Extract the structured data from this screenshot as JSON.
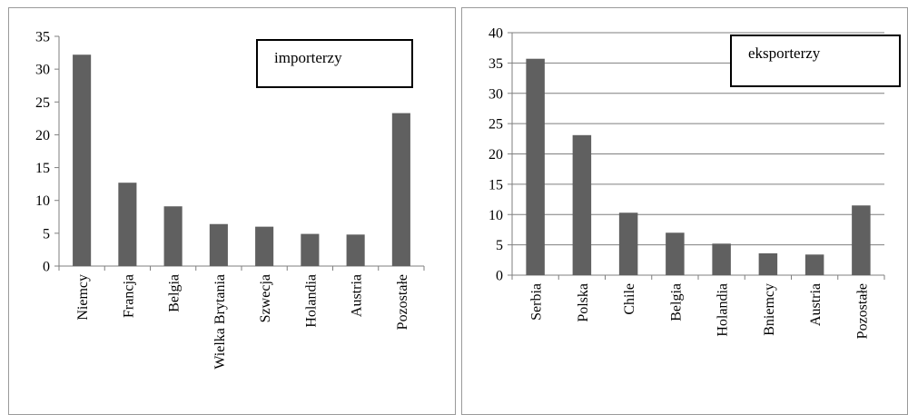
{
  "chart_data": [
    {
      "type": "bar",
      "title": "",
      "legend": "importerzy",
      "categories": [
        "Niemcy",
        "Francja",
        "Belgia",
        "Wielka Brytania",
        "Szwecja",
        "Holandia",
        "Austria",
        "Pozostałe"
      ],
      "series": [
        {
          "name": "importerzy",
          "values": [
            32.2,
            12.7,
            9.1,
            6.4,
            6.0,
            4.9,
            4.8,
            23.3
          ]
        }
      ],
      "yticks": [
        "0",
        "5",
        "10",
        "15",
        "20",
        "25",
        "30",
        "35"
      ],
      "ylim": [
        0,
        35
      ],
      "grid": false,
      "legend_position": "top-right",
      "bar_color": "#606060"
    },
    {
      "type": "bar",
      "title": "",
      "legend": "eksporterzy",
      "categories": [
        "Serbia",
        "Polska",
        "Chile",
        "Belgia",
        "Holandia",
        "Bniemcy",
        "Austria",
        "Pozostałe"
      ],
      "series": [
        {
          "name": "eksporterzy",
          "values": [
            35.7,
            23.1,
            10.3,
            7.0,
            5.2,
            3.6,
            3.4,
            11.5
          ]
        }
      ],
      "yticks": [
        "0",
        "5",
        "10",
        "15",
        "20",
        "25",
        "30",
        "35",
        "40"
      ],
      "ylim": [
        0,
        40
      ],
      "grid": true,
      "legend_position": "top-right",
      "bar_color": "#606060"
    }
  ]
}
